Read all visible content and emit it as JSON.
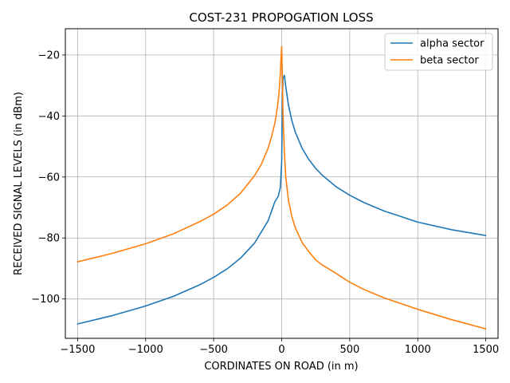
{
  "chart_data": {
    "type": "line",
    "title": "COST-231 PROPOGATION LOSS",
    "xlabel": "CORDINATES ON ROAD (in m)",
    "ylabel": "RECEIVED SIGNAL LEVELS (in dBm)",
    "xlim": [
      -1590,
      1590
    ],
    "ylim": [
      -112.9,
      -11.4
    ],
    "xticks": [
      -1500,
      -1000,
      -500,
      0,
      500,
      1000,
      1500
    ],
    "xtick_labels": [
      "−1500",
      "−1000",
      "−500",
      "0",
      "500",
      "1000",
      "1500"
    ],
    "yticks": [
      -100,
      -80,
      -60,
      -40,
      -20
    ],
    "ytick_labels": [
      "−100",
      "−80",
      "−60",
      "−40",
      "−20"
    ],
    "grid": true,
    "legend_position": "top-right",
    "series": [
      {
        "name": "alpha sector",
        "color": "#1f77b4",
        "x": [
          -1500,
          -1250,
          -1000,
          -800,
          -600,
          -500,
          -400,
          -300,
          -200,
          -100,
          -50,
          -25,
          -10,
          0,
          5,
          10,
          20,
          30,
          50,
          75,
          100,
          150,
          200,
          250,
          300,
          400,
          500,
          600,
          750,
          1000,
          1250,
          1500
        ],
        "y": [
          -108.2,
          -105.5,
          -102.3,
          -99.2,
          -95.3,
          -92.9,
          -90.1,
          -86.5,
          -81.7,
          -74.4,
          -68.1,
          -66.3,
          -63.5,
          -55.0,
          -35.0,
          -27.5,
          -26.7,
          -30.4,
          -36.5,
          -41.6,
          -45.3,
          -50.6,
          -54.3,
          -57.2,
          -59.5,
          -63.2,
          -66.0,
          -68.3,
          -71.1,
          -74.8,
          -77.3,
          -79.2
        ]
      },
      {
        "name": "beta sector",
        "color": "#ff7f0e",
        "x": [
          -1500,
          -1250,
          -1000,
          -800,
          -750,
          -600,
          -500,
          -400,
          -300,
          -200,
          -150,
          -100,
          -75,
          -50,
          -30,
          -20,
          -10,
          -5,
          0,
          5,
          10,
          20,
          30,
          50,
          75,
          100,
          150,
          200,
          250,
          300,
          400,
          450,
          500,
          600,
          750,
          1000,
          1250,
          1500
        ],
        "y": [
          -87.8,
          -85.1,
          -81.9,
          -78.7,
          -77.7,
          -74.6,
          -72.2,
          -69.2,
          -65.2,
          -59.6,
          -55.9,
          -50.6,
          -46.9,
          -42.3,
          -36.7,
          -32.5,
          -26.2,
          -21.3,
          -17.2,
          -27.0,
          -40.0,
          -52.0,
          -60.0,
          -67.7,
          -73.1,
          -76.6,
          -81.5,
          -84.5,
          -87.2,
          -88.9,
          -91.6,
          -93.1,
          -94.5,
          -96.8,
          -99.6,
          -103.4,
          -106.8,
          -109.8
        ]
      }
    ]
  }
}
